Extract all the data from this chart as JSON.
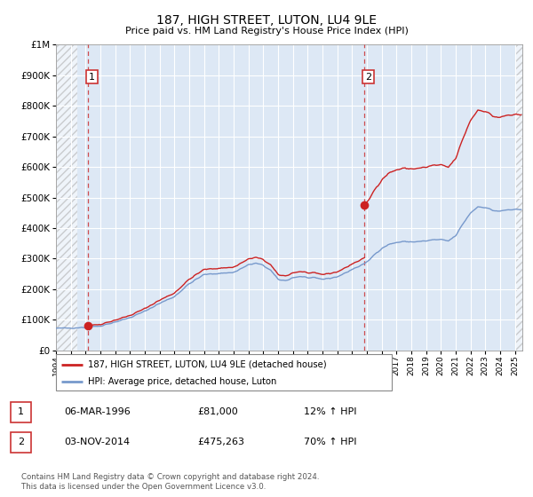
{
  "title": "187, HIGH STREET, LUTON, LU4 9LE",
  "subtitle": "Price paid vs. HM Land Registry's House Price Index (HPI)",
  "ylim": [
    0,
    1000000
  ],
  "xlim_start": 1994.0,
  "xlim_end": 2025.5,
  "yticks": [
    0,
    100000,
    200000,
    300000,
    400000,
    500000,
    600000,
    700000,
    800000,
    900000,
    1000000
  ],
  "ytick_labels": [
    "£0",
    "£100K",
    "£200K",
    "£300K",
    "£400K",
    "£500K",
    "£600K",
    "£700K",
    "£800K",
    "£900K",
    "£1M"
  ],
  "purchase1_x": 1996.17,
  "purchase1_y": 81000,
  "purchase2_x": 2014.84,
  "purchase2_y": 475263,
  "hpi_line_color": "#7799cc",
  "property_line_color": "#cc2222",
  "vline_color": "#cc3333",
  "marker_color": "#cc2222",
  "marker_size": 7,
  "bg_color": "#dde8f5",
  "grid_color": "#ffffff",
  "legend_label_property": "187, HIGH STREET, LUTON, LU4 9LE (detached house)",
  "legend_label_hpi": "HPI: Average price, detached house, Luton",
  "table_row1": [
    "1",
    "06-MAR-1996",
    "£81,000",
    "12% ↑ HPI"
  ],
  "table_row2": [
    "2",
    "03-NOV-2014",
    "£475,263",
    "70% ↑ HPI"
  ],
  "footer": "Contains HM Land Registry data © Crown copyright and database right 2024.\nThis data is licensed under the Open Government Licence v3.0."
}
